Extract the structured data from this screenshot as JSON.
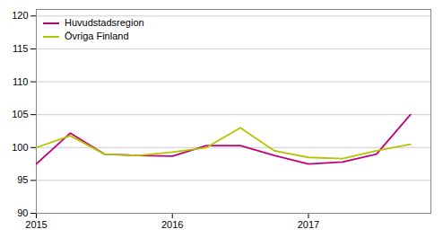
{
  "chart_data": {
    "type": "line",
    "x": [
      2015.0,
      2015.25,
      2015.5,
      2015.75,
      2016.0,
      2016.25,
      2016.5,
      2016.75,
      2017.0,
      2017.25,
      2017.5,
      2017.75
    ],
    "series": [
      {
        "name": "Huvudstadsregion",
        "color": "#c0007a",
        "values": [
          97.5,
          102.2,
          99.0,
          98.8,
          98.7,
          100.3,
          100.3,
          98.8,
          97.5,
          97.8,
          99.0,
          105.0
        ]
      },
      {
        "name": "Övriga Finland",
        "color": "#b5c400",
        "values": [
          100.0,
          101.8,
          99.0,
          98.8,
          99.3,
          100.0,
          103.0,
          99.5,
          98.5,
          98.3,
          99.5,
          100.5
        ]
      }
    ],
    "xlim": [
      2015.0,
      2017.9
    ],
    "xticks": [
      2015,
      2016,
      2017
    ],
    "ylim": [
      90,
      121
    ],
    "yticks": [
      90,
      95,
      100,
      105,
      110,
      115,
      120
    ],
    "grid": true,
    "legend": "upper left"
  }
}
